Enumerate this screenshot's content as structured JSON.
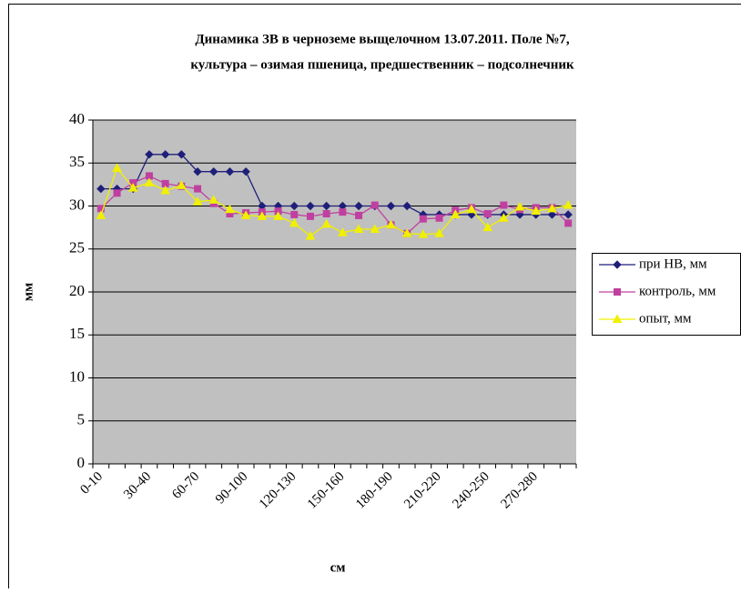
{
  "chart_data": {
    "type": "line",
    "title": [
      "Динамика ЗВ в черноземе выщелочном 13.07.2011. Поле №7,",
      "культура – озимая пшеница, предшественник – подсолнечник"
    ],
    "x_label": "см",
    "y_label": "мм",
    "categories": [
      "0-10",
      null,
      null,
      "30-40",
      null,
      null,
      "60-70",
      null,
      null,
      "90-100",
      null,
      null,
      "120-130",
      null,
      null,
      "150-160",
      null,
      null,
      "180-190",
      null,
      null,
      "210-220",
      null,
      null,
      "240-250",
      null,
      null,
      "270-280",
      null,
      null
    ],
    "series": [
      {
        "name": "при НВ, мм",
        "color": "#1f1f7a",
        "marker": "diamond",
        "values": [
          32,
          32,
          32,
          36,
          36,
          36,
          34,
          34,
          34,
          34,
          30,
          30,
          30,
          30,
          30,
          30,
          30,
          30,
          30,
          30,
          29,
          29,
          29,
          29,
          29,
          29,
          29,
          29,
          29,
          29
        ]
      },
      {
        "name": "контроль, мм",
        "color": "#c040a0",
        "marker": "square",
        "values": [
          29.7,
          31.5,
          32.7,
          33.5,
          32.6,
          32.3,
          32.0,
          30.3,
          29.1,
          29.2,
          29.3,
          29.4,
          29.0,
          28.8,
          29.1,
          29.3,
          28.9,
          30.1,
          27.8,
          26.8,
          28.5,
          28.6,
          29.5,
          29.8,
          29.1,
          30.1,
          29.6,
          29.8,
          29.8,
          28.0
        ]
      },
      {
        "name": "опыт, мм",
        "color": "#f0f000",
        "marker": "triangle",
        "values": [
          28.9,
          34.4,
          32.1,
          32.7,
          31.8,
          32.4,
          30.5,
          30.7,
          29.6,
          28.9,
          28.8,
          28.8,
          28.0,
          26.5,
          27.9,
          26.9,
          27.3,
          27.3,
          27.8,
          26.8,
          26.7,
          26.8,
          29.0,
          29.6,
          27.5,
          28.6,
          29.9,
          29.4,
          29.7,
          30.1
        ]
      }
    ],
    "ylim": [
      0,
      40
    ],
    "yticks": [
      0,
      5,
      10,
      15,
      20,
      25,
      30,
      35,
      40
    ],
    "grid": true,
    "legend": "right"
  }
}
